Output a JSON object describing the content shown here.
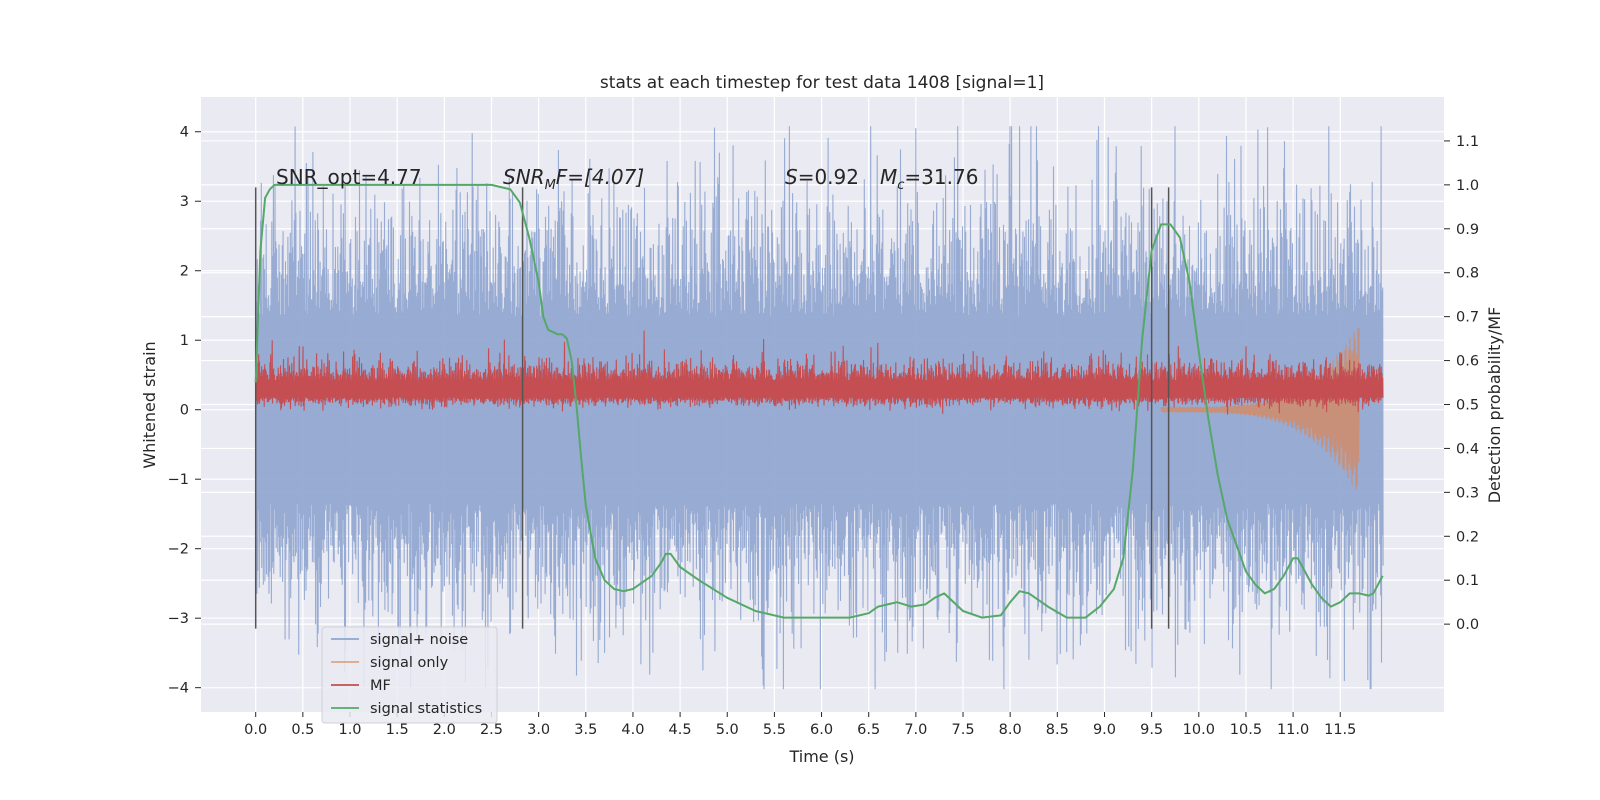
{
  "chart_data": {
    "type": "line",
    "title": "stats at each timestep for test data 1408 [signal=1]",
    "xlabel": "Time (s)",
    "ylabel_left": "Whitened strain",
    "ylabel_right": "Detection probability/MF",
    "xlim": [
      -0.58,
      12.6
    ],
    "ylim_left": [
      -4.35,
      4.5
    ],
    "ylim_right": [
      -0.2,
      1.2
    ],
    "x_ticks": [
      0.0,
      0.5,
      1.0,
      1.5,
      2.0,
      2.5,
      3.0,
      3.5,
      4.0,
      4.5,
      5.0,
      5.5,
      6.0,
      6.5,
      7.0,
      7.5,
      8.0,
      8.5,
      9.0,
      9.5,
      10.0,
      10.5,
      11.0,
      11.5
    ],
    "x_tick_labels": [
      "0.0",
      "0.5",
      "1.0",
      "1.5",
      "2.0",
      "2.5",
      "3.0",
      "3.5",
      "4.0",
      "4.5",
      "5.0",
      "5.5",
      "6.0",
      "6.5",
      "7.0",
      "7.5",
      "8.0",
      "8.5",
      "9.0",
      "9.5",
      "10.0",
      "10.5",
      "11.0",
      "11.5"
    ],
    "y_left_ticks": [
      -4,
      -3,
      -2,
      -1,
      0,
      1,
      2,
      3,
      4
    ],
    "y_left_tick_labels": [
      "−4",
      "−3",
      "−2",
      "−1",
      "0",
      "1",
      "2",
      "3",
      "4"
    ],
    "y_right_ticks": [
      0.0,
      0.1,
      0.2,
      0.3,
      0.4,
      0.5,
      0.6,
      0.7,
      0.8,
      0.9,
      1.0,
      1.1
    ],
    "y_right_tick_labels": [
      "0.0",
      "0.1",
      "0.2",
      "0.3",
      "0.4",
      "0.5",
      "0.6",
      "0.7",
      "0.8",
      "0.9",
      "1.0",
      "1.1"
    ],
    "grid": true,
    "legend_placement": "lower-left",
    "annotations": {
      "snr_opt": "SNR_opt=4.77",
      "snr_mf_label": "SNR",
      "snr_mf_sub": "M",
      "snr_mf_rest": "F=[4.07]",
      "s_label": "S",
      "s_value": "=0.92",
      "mc_label": "M",
      "mc_sub": "c",
      "mc_value": "=31.76"
    },
    "markers": {
      "x": [
        0.0,
        2.83,
        9.5,
        9.68
      ],
      "y_range_left": [
        -3.15,
        3.2
      ],
      "color": "#555555"
    },
    "series": [
      {
        "name": "signal+ noise",
        "axis": "left",
        "color": "#8ea4cf",
        "kind": "noise",
        "x_range": [
          0.0,
          11.95
        ],
        "mean": 0.0,
        "typical_amplitude": 1.9,
        "peak_max": 4.08,
        "peak_min": -4.02
      },
      {
        "name": "signal only",
        "axis": "left",
        "color": "#dd8452",
        "kind": "chirp",
        "x_range": [
          9.6,
          11.7
        ],
        "peak_max": 1.3,
        "peak_min": -1.25
      },
      {
        "name": "MF",
        "axis": "left",
        "color": "#c44e52",
        "kind": "band",
        "x_range": [
          0.0,
          11.95
        ],
        "mean": 0.3,
        "typical_amplitude": 0.3,
        "peak_max": 1.3
      },
      {
        "name": "signal statistics",
        "axis": "right",
        "color": "#55a868",
        "x": [
          0.0,
          0.05,
          0.1,
          0.15,
          0.2,
          0.3,
          0.5,
          1.0,
          1.5,
          2.0,
          2.5,
          2.6,
          2.7,
          2.8,
          2.9,
          3.0,
          3.05,
          3.1,
          3.2,
          3.25,
          3.3,
          3.35,
          3.4,
          3.45,
          3.5,
          3.6,
          3.7,
          3.8,
          3.9,
          4.0,
          4.2,
          4.3,
          4.35,
          4.4,
          4.5,
          4.7,
          5.0,
          5.3,
          5.6,
          6.0,
          6.3,
          6.5,
          6.6,
          6.8,
          6.95,
          7.1,
          7.2,
          7.3,
          7.5,
          7.7,
          7.9,
          8.0,
          8.1,
          8.2,
          8.4,
          8.6,
          8.8,
          8.95,
          9.1,
          9.2,
          9.3,
          9.4,
          9.5,
          9.6,
          9.7,
          9.8,
          9.9,
          10.0,
          10.1,
          10.2,
          10.3,
          10.4,
          10.5,
          10.6,
          10.7,
          10.8,
          10.9,
          11.0,
          11.05,
          11.1,
          11.2,
          11.3,
          11.4,
          11.5,
          11.6,
          11.7,
          11.8,
          11.85,
          11.9,
          11.95
        ],
        "values": [
          0.55,
          0.85,
          0.97,
          0.99,
          1.0,
          1.0,
          1.0,
          1.0,
          1.0,
          1.0,
          1.0,
          0.995,
          0.99,
          0.96,
          0.88,
          0.78,
          0.7,
          0.67,
          0.66,
          0.66,
          0.65,
          0.6,
          0.5,
          0.38,
          0.27,
          0.15,
          0.1,
          0.08,
          0.075,
          0.08,
          0.11,
          0.14,
          0.16,
          0.16,
          0.13,
          0.1,
          0.06,
          0.03,
          0.015,
          0.015,
          0.015,
          0.025,
          0.04,
          0.05,
          0.04,
          0.045,
          0.06,
          0.07,
          0.03,
          0.015,
          0.02,
          0.05,
          0.075,
          0.07,
          0.04,
          0.015,
          0.015,
          0.04,
          0.08,
          0.15,
          0.35,
          0.65,
          0.85,
          0.91,
          0.91,
          0.88,
          0.78,
          0.62,
          0.47,
          0.34,
          0.24,
          0.18,
          0.12,
          0.09,
          0.07,
          0.08,
          0.11,
          0.15,
          0.15,
          0.13,
          0.09,
          0.06,
          0.04,
          0.05,
          0.07,
          0.07,
          0.065,
          0.07,
          0.09,
          0.11
        ]
      }
    ]
  }
}
